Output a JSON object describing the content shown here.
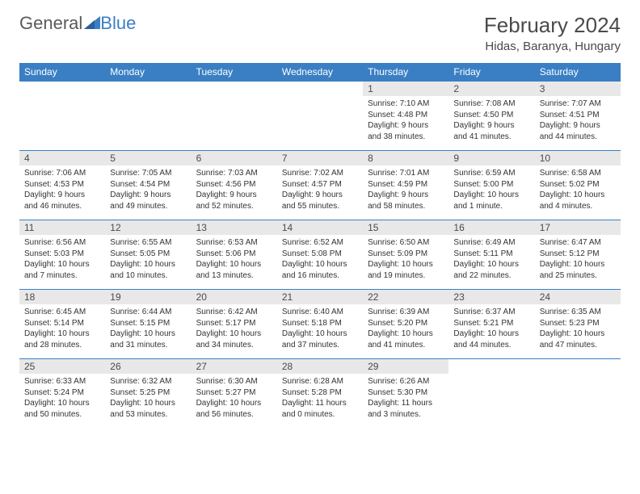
{
  "brand": {
    "part1": "General",
    "part2": "Blue"
  },
  "title": "February 2024",
  "location": "Hidas, Baranya, Hungary",
  "colors": {
    "header_bg": "#3a7fc4",
    "header_text": "#ffffff",
    "daynum_bg": "#e8e8e8",
    "border": "#3a7fc4",
    "text": "#333333",
    "title_text": "#4a4a4a"
  },
  "weekdays": [
    "Sunday",
    "Monday",
    "Tuesday",
    "Wednesday",
    "Thursday",
    "Friday",
    "Saturday"
  ],
  "grid": {
    "cols": 7,
    "rows": 5,
    "start_index": 4
  },
  "days": [
    {
      "n": "1",
      "sunrise": "Sunrise: 7:10 AM",
      "sunset": "Sunset: 4:48 PM",
      "daylight": "Daylight: 9 hours and 38 minutes."
    },
    {
      "n": "2",
      "sunrise": "Sunrise: 7:08 AM",
      "sunset": "Sunset: 4:50 PM",
      "daylight": "Daylight: 9 hours and 41 minutes."
    },
    {
      "n": "3",
      "sunrise": "Sunrise: 7:07 AM",
      "sunset": "Sunset: 4:51 PM",
      "daylight": "Daylight: 9 hours and 44 minutes."
    },
    {
      "n": "4",
      "sunrise": "Sunrise: 7:06 AM",
      "sunset": "Sunset: 4:53 PM",
      "daylight": "Daylight: 9 hours and 46 minutes."
    },
    {
      "n": "5",
      "sunrise": "Sunrise: 7:05 AM",
      "sunset": "Sunset: 4:54 PM",
      "daylight": "Daylight: 9 hours and 49 minutes."
    },
    {
      "n": "6",
      "sunrise": "Sunrise: 7:03 AM",
      "sunset": "Sunset: 4:56 PM",
      "daylight": "Daylight: 9 hours and 52 minutes."
    },
    {
      "n": "7",
      "sunrise": "Sunrise: 7:02 AM",
      "sunset": "Sunset: 4:57 PM",
      "daylight": "Daylight: 9 hours and 55 minutes."
    },
    {
      "n": "8",
      "sunrise": "Sunrise: 7:01 AM",
      "sunset": "Sunset: 4:59 PM",
      "daylight": "Daylight: 9 hours and 58 minutes."
    },
    {
      "n": "9",
      "sunrise": "Sunrise: 6:59 AM",
      "sunset": "Sunset: 5:00 PM",
      "daylight": "Daylight: 10 hours and 1 minute."
    },
    {
      "n": "10",
      "sunrise": "Sunrise: 6:58 AM",
      "sunset": "Sunset: 5:02 PM",
      "daylight": "Daylight: 10 hours and 4 minutes."
    },
    {
      "n": "11",
      "sunrise": "Sunrise: 6:56 AM",
      "sunset": "Sunset: 5:03 PM",
      "daylight": "Daylight: 10 hours and 7 minutes."
    },
    {
      "n": "12",
      "sunrise": "Sunrise: 6:55 AM",
      "sunset": "Sunset: 5:05 PM",
      "daylight": "Daylight: 10 hours and 10 minutes."
    },
    {
      "n": "13",
      "sunrise": "Sunrise: 6:53 AM",
      "sunset": "Sunset: 5:06 PM",
      "daylight": "Daylight: 10 hours and 13 minutes."
    },
    {
      "n": "14",
      "sunrise": "Sunrise: 6:52 AM",
      "sunset": "Sunset: 5:08 PM",
      "daylight": "Daylight: 10 hours and 16 minutes."
    },
    {
      "n": "15",
      "sunrise": "Sunrise: 6:50 AM",
      "sunset": "Sunset: 5:09 PM",
      "daylight": "Daylight: 10 hours and 19 minutes."
    },
    {
      "n": "16",
      "sunrise": "Sunrise: 6:49 AM",
      "sunset": "Sunset: 5:11 PM",
      "daylight": "Daylight: 10 hours and 22 minutes."
    },
    {
      "n": "17",
      "sunrise": "Sunrise: 6:47 AM",
      "sunset": "Sunset: 5:12 PM",
      "daylight": "Daylight: 10 hours and 25 minutes."
    },
    {
      "n": "18",
      "sunrise": "Sunrise: 6:45 AM",
      "sunset": "Sunset: 5:14 PM",
      "daylight": "Daylight: 10 hours and 28 minutes."
    },
    {
      "n": "19",
      "sunrise": "Sunrise: 6:44 AM",
      "sunset": "Sunset: 5:15 PM",
      "daylight": "Daylight: 10 hours and 31 minutes."
    },
    {
      "n": "20",
      "sunrise": "Sunrise: 6:42 AM",
      "sunset": "Sunset: 5:17 PM",
      "daylight": "Daylight: 10 hours and 34 minutes."
    },
    {
      "n": "21",
      "sunrise": "Sunrise: 6:40 AM",
      "sunset": "Sunset: 5:18 PM",
      "daylight": "Daylight: 10 hours and 37 minutes."
    },
    {
      "n": "22",
      "sunrise": "Sunrise: 6:39 AM",
      "sunset": "Sunset: 5:20 PM",
      "daylight": "Daylight: 10 hours and 41 minutes."
    },
    {
      "n": "23",
      "sunrise": "Sunrise: 6:37 AM",
      "sunset": "Sunset: 5:21 PM",
      "daylight": "Daylight: 10 hours and 44 minutes."
    },
    {
      "n": "24",
      "sunrise": "Sunrise: 6:35 AM",
      "sunset": "Sunset: 5:23 PM",
      "daylight": "Daylight: 10 hours and 47 minutes."
    },
    {
      "n": "25",
      "sunrise": "Sunrise: 6:33 AM",
      "sunset": "Sunset: 5:24 PM",
      "daylight": "Daylight: 10 hours and 50 minutes."
    },
    {
      "n": "26",
      "sunrise": "Sunrise: 6:32 AM",
      "sunset": "Sunset: 5:25 PM",
      "daylight": "Daylight: 10 hours and 53 minutes."
    },
    {
      "n": "27",
      "sunrise": "Sunrise: 6:30 AM",
      "sunset": "Sunset: 5:27 PM",
      "daylight": "Daylight: 10 hours and 56 minutes."
    },
    {
      "n": "28",
      "sunrise": "Sunrise: 6:28 AM",
      "sunset": "Sunset: 5:28 PM",
      "daylight": "Daylight: 11 hours and 0 minutes."
    },
    {
      "n": "29",
      "sunrise": "Sunrise: 6:26 AM",
      "sunset": "Sunset: 5:30 PM",
      "daylight": "Daylight: 11 hours and 3 minutes."
    }
  ]
}
